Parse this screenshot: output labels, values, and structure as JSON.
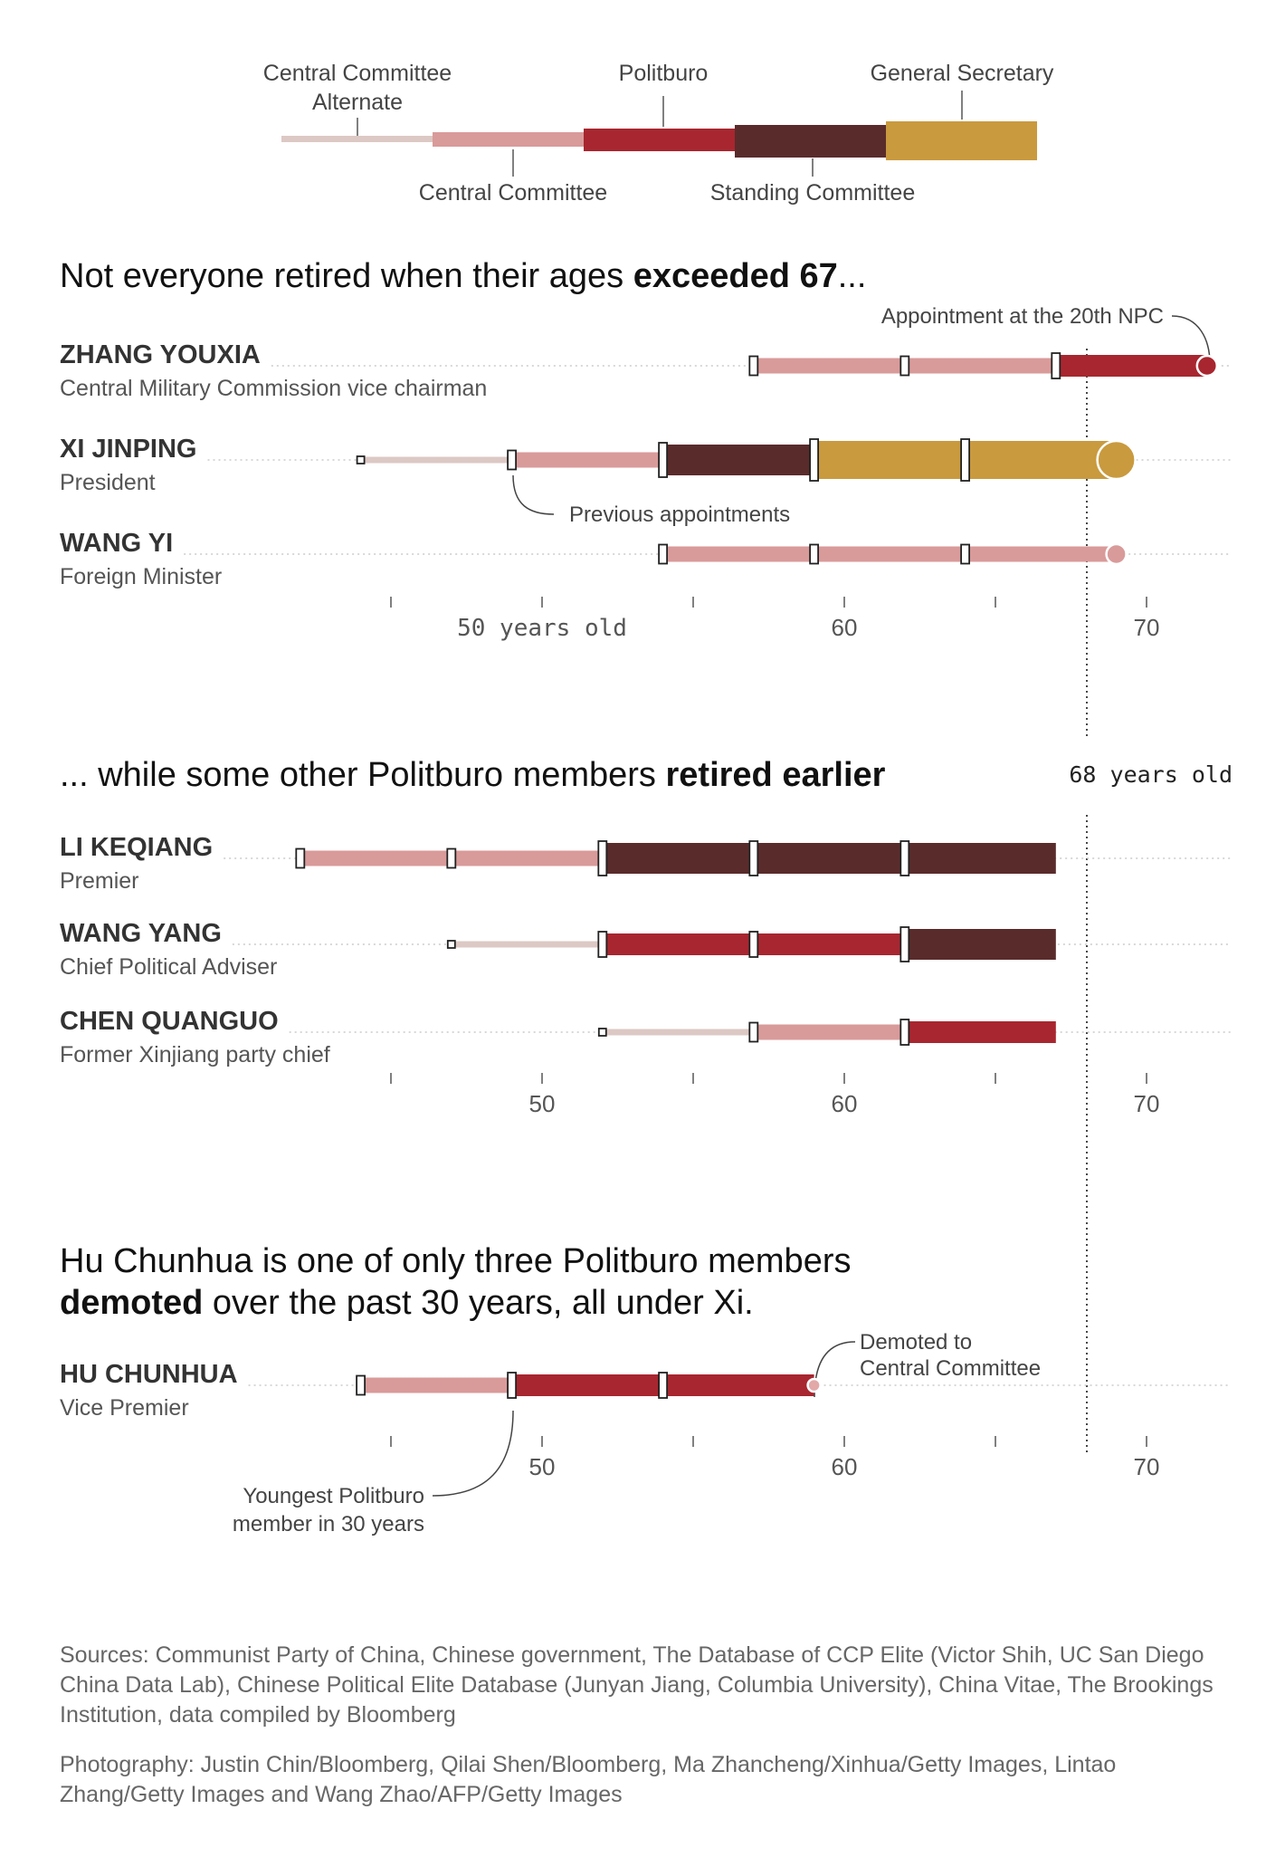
{
  "colors": {
    "cc_alternate": "#dcc8c4",
    "central_committee": "#d99a9a",
    "politburo": "#a8262f",
    "standing_committee": "#5a2b2b",
    "general_secretary": "#c99a3e",
    "gridline": "#cccccc",
    "marker_fill": "#ffffff",
    "marker_stroke": "#222222"
  },
  "legend": {
    "cc_alternate_line1": "Central Committee",
    "cc_alternate_line2": "Alternate",
    "politburo": "Politburo",
    "general_secretary": "General Secretary",
    "central_committee": "Central Committee",
    "standing_committee": "Standing Committee"
  },
  "sections": [
    {
      "heading_plain": "Not everyone retired when their ages ",
      "heading_bold": "exceeded 67",
      "heading_tail": "..."
    },
    {
      "heading_plain": "... while some other Politburo members ",
      "heading_bold": "retired earlier",
      "heading_tail": ""
    },
    {
      "heading_line1": "Hu Chunhua is one of only three Politburo members",
      "heading_line2_bold": "demoted",
      "heading_line2_tail": " over the past 30 years, all under Xi."
    }
  ],
  "annotations": {
    "npc_appointment": "Appointment at the 20th NPC",
    "previous_appointments": "Previous appointments",
    "threshold_label": "68 years old",
    "demoted_line1": "Demoted to",
    "demoted_line2": "Central Committee",
    "youngest_line1": "Youngest Politburo",
    "youngest_line2": "member in 30 years"
  },
  "axis_ticks": {
    "section1": [
      "50 years old",
      "60",
      "70"
    ],
    "section2": [
      "50",
      "60",
      "70"
    ],
    "section3": [
      "50",
      "60",
      "70"
    ]
  },
  "chart_data": {
    "type": "bar",
    "x_unit": "age (years)",
    "xlim": [
      45,
      72
    ],
    "major_ticks": [
      50,
      60,
      70
    ],
    "minor_ticks": [
      45,
      55,
      65
    ],
    "threshold_age": 68,
    "people": [
      {
        "name": "ZHANG YOUXIA",
        "role": "Central Military Commission vice chairman",
        "section": 0,
        "segments": [
          {
            "level": "central_committee",
            "from": 57,
            "to": 67
          },
          {
            "level": "politburo",
            "from": 67,
            "to": 72
          }
        ],
        "markers": [
          57,
          62,
          67
        ],
        "end_marker": 72
      },
      {
        "name": "XI JINPING",
        "role": "President",
        "section": 0,
        "segments": [
          {
            "level": "cc_alternate",
            "from": 44,
            "to": 49
          },
          {
            "level": "central_committee",
            "from": 49,
            "to": 54
          },
          {
            "level": "standing_committee",
            "from": 54,
            "to": 59
          },
          {
            "level": "general_secretary",
            "from": 59,
            "to": 69
          }
        ],
        "markers": [
          44,
          49,
          54,
          59,
          64
        ],
        "end_marker": 69
      },
      {
        "name": "WANG YI",
        "role": "Foreign Minister",
        "section": 0,
        "segments": [
          {
            "level": "central_committee",
            "from": 54,
            "to": 69
          }
        ],
        "markers": [
          54,
          59,
          64
        ],
        "end_marker": 69
      },
      {
        "name": "LI KEQIANG",
        "role": "Premier",
        "section": 1,
        "segments": [
          {
            "level": "central_committee",
            "from": 42,
            "to": 52
          },
          {
            "level": "standing_committee",
            "from": 52,
            "to": 67
          }
        ],
        "markers": [
          42,
          47,
          52,
          57,
          62
        ]
      },
      {
        "name": "WANG YANG",
        "role": "Chief Political Adviser",
        "section": 1,
        "segments": [
          {
            "level": "cc_alternate",
            "from": 47,
            "to": 52
          },
          {
            "level": "politburo",
            "from": 52,
            "to": 62
          },
          {
            "level": "standing_committee",
            "from": 62,
            "to": 67
          }
        ],
        "markers": [
          47,
          52,
          57,
          62
        ]
      },
      {
        "name": "CHEN QUANGUO",
        "role": "Former Xinjiang party chief",
        "section": 1,
        "segments": [
          {
            "level": "cc_alternate",
            "from": 52,
            "to": 57
          },
          {
            "level": "central_committee",
            "from": 57,
            "to": 62
          },
          {
            "level": "politburo",
            "from": 62,
            "to": 67
          }
        ],
        "markers": [
          52,
          57,
          62
        ]
      },
      {
        "name": "HU CHUNHUA",
        "role": "Vice Premier",
        "section": 2,
        "segments": [
          {
            "level": "central_committee",
            "from": 44,
            "to": 49
          },
          {
            "level": "politburo",
            "from": 49,
            "to": 59
          }
        ],
        "markers": [
          44,
          49,
          54
        ],
        "end_marker": 59
      }
    ]
  },
  "footer": {
    "sources": "Sources: Communist Party of China, Chinese government, The Database of CCP Elite (Victor Shih, UC San Diego China Data Lab), Chinese Political Elite Database (Junyan Jiang, Columbia University), China Vitae, The Brookings Institution, data compiled by Bloomberg",
    "photography": "Photography: Justin Chin/Bloomberg, Qilai Shen/Bloomberg, Ma Zhancheng/Xinhua/Getty Images, Lintao Zhang/Getty Images and Wang Zhao/AFP/Getty Images"
  }
}
